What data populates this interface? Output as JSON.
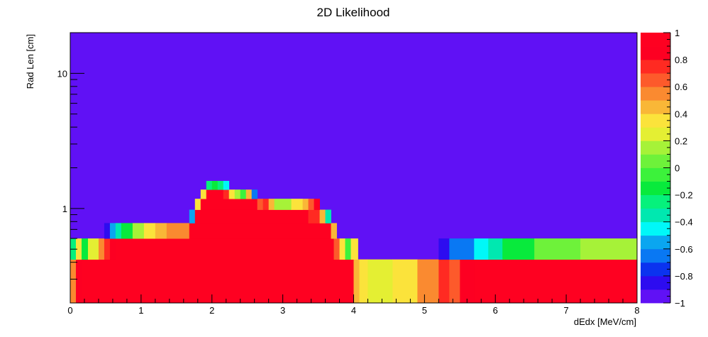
{
  "chart_data": {
    "type": "heatmap",
    "title": "2D Likelihood",
    "xlabel": "dEdx [MeV/cm]",
    "ylabel": "Rad Len [cm]",
    "xlim": [
      0,
      8
    ],
    "ylim": [
      0.2,
      20
    ],
    "y_scale": "log",
    "x_ticks": [
      "0",
      "1",
      "2",
      "3",
      "4",
      "5",
      "6",
      "7",
      "8"
    ],
    "y_ticks": [
      "1",
      "10"
    ],
    "colorbar": {
      "range": [
        -1,
        1
      ],
      "ticks": [
        "1",
        "0.8",
        "0.6",
        "0.4",
        "0.2",
        "0",
        "−0.2",
        "−0.4",
        "−0.6",
        "−0.8",
        "−1"
      ],
      "colors": [
        "#6011f5",
        "#2d0cf0",
        "#0b33ef",
        "#0978f3",
        "#0aa6f0",
        "#00f8f8",
        "#00e8b0",
        "#06f17c",
        "#08ea3c",
        "#3cf23b",
        "#6ef23a",
        "#a6f238",
        "#e4ef33",
        "#fbe33b",
        "#f9b737",
        "#fa8a30",
        "#fd5a2b",
        "#ff2a22",
        "#fd0022",
        "#fe0121"
      ]
    },
    "background_value": -1.0,
    "rows": [
      {
        "y": [
          0.2,
          0.42
        ],
        "x": [
          0,
          8
        ],
        "value": 1.0
      },
      {
        "y": [
          0.2,
          0.42
        ],
        "x": [
          0.0,
          0.08
        ],
        "value": 0.55
      },
      {
        "y": [
          0.2,
          0.42
        ],
        "x": [
          0.08,
          0.16
        ],
        "value": 0.85
      },
      {
        "y": [
          0.2,
          0.42
        ],
        "x": [
          4.0,
          4.08
        ],
        "value": 0.45
      },
      {
        "y": [
          0.2,
          0.42
        ],
        "x": [
          4.08,
          4.2
        ],
        "value": 0.35
      },
      {
        "y": [
          0.2,
          0.42
        ],
        "x": [
          4.2,
          4.55
        ],
        "value": 0.2
      },
      {
        "y": [
          0.2,
          0.42
        ],
        "x": [
          4.55,
          4.9
        ],
        "value": 0.35
      },
      {
        "y": [
          0.2,
          0.42
        ],
        "x": [
          4.9,
          5.2
        ],
        "value": 0.55
      },
      {
        "y": [
          0.2,
          0.42
        ],
        "x": [
          5.2,
          5.35
        ],
        "value": 0.75
      },
      {
        "y": [
          0.2,
          0.42
        ],
        "x": [
          5.35,
          5.5
        ],
        "value": 0.65
      },
      {
        "y": [
          0.2,
          0.42
        ],
        "x": [
          5.5,
          5.7
        ],
        "value": 0.85
      },
      {
        "y": [
          0.42,
          0.6
        ],
        "x": [
          0.0,
          0.08
        ],
        "value": -0.25
      },
      {
        "y": [
          0.42,
          0.6
        ],
        "x": [
          0.08,
          0.16
        ],
        "value": 0.3
      },
      {
        "y": [
          0.42,
          0.6
        ],
        "x": [
          0.16,
          0.25
        ],
        "value": -0.15
      },
      {
        "y": [
          0.42,
          0.6
        ],
        "x": [
          0.25,
          0.4
        ],
        "value": 0.25
      },
      {
        "y": [
          0.42,
          0.6
        ],
        "x": [
          0.4,
          0.48
        ],
        "value": 0.55
      },
      {
        "y": [
          0.42,
          0.6
        ],
        "x": [
          0.48,
          0.56
        ],
        "value": 0.75
      },
      {
        "y": [
          0.42,
          0.6
        ],
        "x": [
          0.56,
          0.64
        ],
        "value": 0.85
      },
      {
        "y": [
          0.42,
          0.6
        ],
        "x": [
          0.64,
          3.72
        ],
        "value": 1.0
      },
      {
        "y": [
          0.42,
          0.6
        ],
        "x": [
          3.72,
          3.8
        ],
        "value": 0.6
      },
      {
        "y": [
          0.42,
          0.6
        ],
        "x": [
          3.8,
          3.88
        ],
        "value": 0.3
      },
      {
        "y": [
          0.42,
          0.6
        ],
        "x": [
          3.88,
          3.96
        ],
        "value": -0.1
      },
      {
        "y": [
          0.42,
          0.6
        ],
        "x": [
          3.96,
          4.06
        ],
        "value": 0.3
      },
      {
        "y": [
          0.42,
          0.6
        ],
        "x": [
          5.2,
          5.35
        ],
        "value": -0.8
      },
      {
        "y": [
          0.42,
          0.6
        ],
        "x": [
          5.35,
          5.5
        ],
        "value": -0.7
      },
      {
        "y": [
          0.42,
          0.6
        ],
        "x": [
          5.5,
          5.7
        ],
        "value": -0.65
      },
      {
        "y": [
          0.42,
          0.6
        ],
        "x": [
          5.7,
          5.9
        ],
        "value": -0.5
      },
      {
        "y": [
          0.42,
          0.6
        ],
        "x": [
          5.9,
          6.1
        ],
        "value": -0.35
      },
      {
        "y": [
          0.42,
          0.6
        ],
        "x": [
          6.1,
          6.55
        ],
        "value": -0.15
      },
      {
        "y": [
          0.42,
          0.6
        ],
        "x": [
          6.55,
          7.2
        ],
        "value": 0.05
      },
      {
        "y": [
          0.42,
          0.6
        ],
        "x": [
          7.2,
          8.0
        ],
        "value": 0.15
      },
      {
        "y": [
          0.6,
          0.78
        ],
        "x": [
          0.48,
          0.56
        ],
        "value": -0.8
      },
      {
        "y": [
          0.6,
          0.78
        ],
        "x": [
          0.56,
          0.64
        ],
        "value": -0.6
      },
      {
        "y": [
          0.6,
          0.78
        ],
        "x": [
          0.64,
          0.72
        ],
        "value": -0.4
      },
      {
        "y": [
          0.6,
          0.78
        ],
        "x": [
          0.72,
          0.88
        ],
        "value": -0.2
      },
      {
        "y": [
          0.6,
          0.78
        ],
        "x": [
          0.88,
          1.04
        ],
        "value": 0.1
      },
      {
        "y": [
          0.6,
          0.78
        ],
        "x": [
          1.04,
          1.2
        ],
        "value": 0.3
      },
      {
        "y": [
          0.6,
          0.78
        ],
        "x": [
          1.2,
          1.36
        ],
        "value": 0.45
      },
      {
        "y": [
          0.6,
          0.78
        ],
        "x": [
          1.36,
          1.68
        ],
        "value": 0.55
      },
      {
        "y": [
          0.6,
          0.78
        ],
        "x": [
          1.68,
          3.68
        ],
        "value": 1.0
      },
      {
        "y": [
          0.6,
          0.78
        ],
        "x": [
          3.68,
          3.76
        ],
        "value": 0.45
      },
      {
        "y": [
          0.78,
          0.98
        ],
        "x": [
          1.68,
          1.76
        ],
        "value": -0.6
      },
      {
        "y": [
          0.78,
          0.98
        ],
        "x": [
          1.76,
          3.36
        ],
        "value": 1.0
      },
      {
        "y": [
          0.78,
          0.98
        ],
        "x": [
          3.36,
          3.52
        ],
        "value": 0.75
      },
      {
        "y": [
          0.78,
          0.98
        ],
        "x": [
          3.52,
          3.6
        ],
        "value": 0.4
      },
      {
        "y": [
          0.78,
          0.98
        ],
        "x": [
          3.6,
          3.68
        ],
        "value": -0.4
      },
      {
        "y": [
          0.98,
          1.18
        ],
        "x": [
          1.76,
          1.84
        ],
        "value": 0.35
      },
      {
        "y": [
          0.98,
          1.18
        ],
        "x": [
          1.84,
          2.64
        ],
        "value": 1.0
      },
      {
        "y": [
          0.98,
          1.18
        ],
        "x": [
          2.64,
          2.72
        ],
        "value": 0.65
      },
      {
        "y": [
          0.98,
          1.18
        ],
        "x": [
          2.72,
          2.8
        ],
        "value": 0.75
      },
      {
        "y": [
          0.98,
          1.18
        ],
        "x": [
          2.8,
          2.88
        ],
        "value": 0.4
      },
      {
        "y": [
          0.98,
          1.18
        ],
        "x": [
          2.88,
          3.12
        ],
        "value": 0.15
      },
      {
        "y": [
          0.98,
          1.18
        ],
        "x": [
          3.12,
          3.28
        ],
        "value": 0.3
      },
      {
        "y": [
          0.98,
          1.18
        ],
        "x": [
          3.28,
          3.36
        ],
        "value": 0.45
      },
      {
        "y": [
          0.98,
          1.18
        ],
        "x": [
          3.36,
          3.44
        ],
        "value": 0.65
      },
      {
        "y": [
          0.98,
          1.18
        ],
        "x": [
          3.44,
          3.52
        ],
        "value": 0.8
      },
      {
        "y": [
          1.18,
          1.38
        ],
        "x": [
          1.84,
          1.92
        ],
        "value": 0.35
      },
      {
        "y": [
          1.18,
          1.38
        ],
        "x": [
          1.92,
          2.16
        ],
        "value": 1.0
      },
      {
        "y": [
          1.18,
          1.38
        ],
        "x": [
          2.16,
          2.24
        ],
        "value": 0.75
      },
      {
        "y": [
          1.18,
          1.38
        ],
        "x": [
          2.24,
          2.32
        ],
        "value": 0.35
      },
      {
        "y": [
          1.18,
          1.38
        ],
        "x": [
          2.32,
          2.4
        ],
        "value": 0.15
      },
      {
        "y": [
          1.18,
          1.38
        ],
        "x": [
          2.4,
          2.48
        ],
        "value": -0.1
      },
      {
        "y": [
          1.18,
          1.38
        ],
        "x": [
          2.48,
          2.56
        ],
        "value": 0.45
      },
      {
        "y": [
          1.18,
          1.38
        ],
        "x": [
          2.56,
          2.64
        ],
        "value": -0.7
      },
      {
        "y": [
          1.38,
          1.6
        ],
        "x": [
          1.92,
          2.0
        ],
        "value": -0.3
      },
      {
        "y": [
          1.38,
          1.6
        ],
        "x": [
          2.0,
          2.08
        ],
        "value": -0.15
      },
      {
        "y": [
          1.38,
          1.6
        ],
        "x": [
          2.08,
          2.16
        ],
        "value": -0.3
      },
      {
        "y": [
          1.38,
          1.6
        ],
        "x": [
          2.16,
          2.24
        ],
        "value": -0.5
      }
    ]
  }
}
